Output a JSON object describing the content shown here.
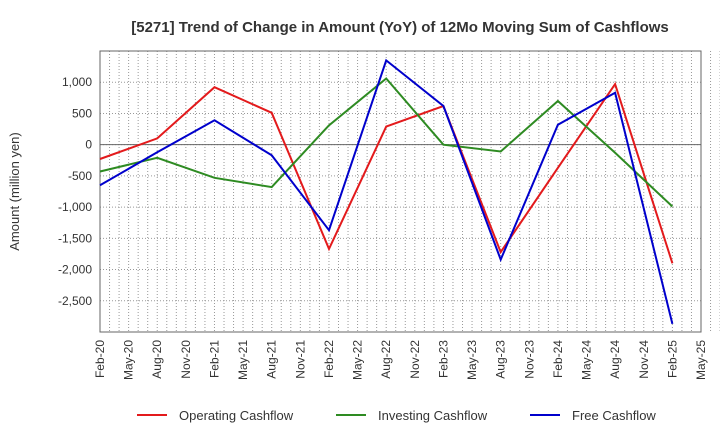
{
  "chart_data": {
    "type": "line",
    "title": "[5271]  Trend of Change in Amount (YoY) of 12Mo Moving Sum of Cashflows",
    "xlabel": "",
    "ylabel": "Amount (million yen)",
    "ylim": [
      -3000,
      1500
    ],
    "yticks": [
      1000,
      500,
      0,
      -500,
      -1000,
      -1500,
      -2000,
      -2500
    ],
    "ytick_labels": [
      "1,000",
      "500",
      "0",
      "-500",
      "-1,000",
      "-1,500",
      "-2,000",
      "-2,500"
    ],
    "categories": [
      "Feb-20",
      "May-20",
      "Aug-20",
      "Nov-20",
      "Feb-21",
      "May-21",
      "Aug-21",
      "Nov-21",
      "Feb-22",
      "May-22",
      "Aug-22",
      "Nov-22",
      "Feb-23",
      "May-23",
      "Aug-23",
      "Nov-23",
      "Feb-24",
      "May-24",
      "Aug-24",
      "Nov-24",
      "Feb-25",
      "May-25"
    ],
    "grid": true,
    "legend_position": "bottom",
    "series": [
      {
        "name": "Operating Cashflow",
        "color": "#e31a1c",
        "points": [
          [
            "Feb-20",
            -230
          ],
          [
            "Aug-20",
            100
          ],
          [
            "Feb-21",
            920
          ],
          [
            "Aug-21",
            510
          ],
          [
            "Feb-22",
            -1670
          ],
          [
            "Aug-22",
            290
          ],
          [
            "Feb-23",
            620
          ],
          [
            "Aug-23",
            -1720
          ],
          [
            "Feb-24",
            -370
          ],
          [
            "Aug-24",
            970
          ],
          [
            "Feb-25",
            -1900
          ]
        ]
      },
      {
        "name": "Investing Cashflow",
        "color": "#2e8b22",
        "points": [
          [
            "Feb-20",
            -430
          ],
          [
            "Aug-20",
            -210
          ],
          [
            "Feb-21",
            -530
          ],
          [
            "Aug-21",
            -680
          ],
          [
            "Feb-22",
            310
          ],
          [
            "Aug-22",
            1060
          ],
          [
            "Feb-23",
            0
          ],
          [
            "Aug-23",
            -110
          ],
          [
            "Feb-24",
            700
          ],
          [
            "Aug-24",
            -130
          ],
          [
            "Feb-25",
            -990
          ]
        ]
      },
      {
        "name": "Free Cashflow",
        "color": "#0000cc",
        "points": [
          [
            "Feb-20",
            -650
          ],
          [
            "Aug-20",
            -120
          ],
          [
            "Feb-21",
            390
          ],
          [
            "Aug-21",
            -170
          ],
          [
            "Feb-22",
            -1370
          ],
          [
            "Aug-22",
            1350
          ],
          [
            "Feb-23",
            620
          ],
          [
            "Aug-23",
            -1840
          ],
          [
            "Feb-24",
            320
          ],
          [
            "Aug-24",
            830
          ],
          [
            "Feb-25",
            -2870
          ]
        ]
      }
    ]
  }
}
